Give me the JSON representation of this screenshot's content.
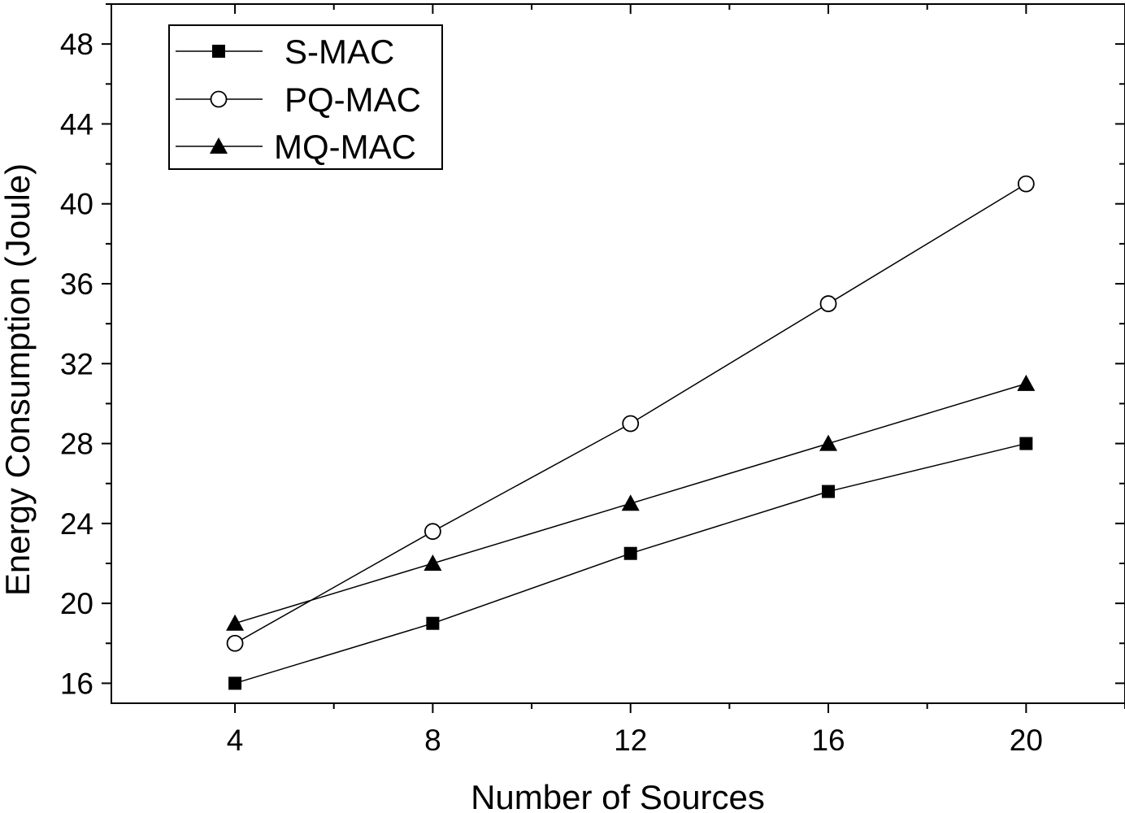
{
  "chart_data": {
    "type": "line",
    "title": "",
    "xlabel": "Number of Sources",
    "ylabel": "Energy Consumption (Joule)",
    "xlim": [
      1.5,
      22
    ],
    "ylim": [
      15,
      50
    ],
    "xticks": [
      4,
      8,
      12,
      16,
      20
    ],
    "yticks": [
      16,
      20,
      24,
      28,
      32,
      36,
      40,
      44,
      48
    ],
    "x": [
      4,
      8,
      12,
      16,
      20
    ],
    "grid": false,
    "legend_position": "top-left",
    "series": [
      {
        "name": "S-MAC",
        "marker": "filled-square",
        "values": [
          16,
          19,
          22.5,
          25.6,
          28
        ]
      },
      {
        "name": "PQ-MAC",
        "marker": "open-circle",
        "values": [
          18,
          23.6,
          29,
          35,
          41
        ]
      },
      {
        "name": "MQ-MAC",
        "marker": "filled-triangle",
        "values": [
          19,
          22,
          25,
          28,
          31
        ]
      }
    ]
  }
}
